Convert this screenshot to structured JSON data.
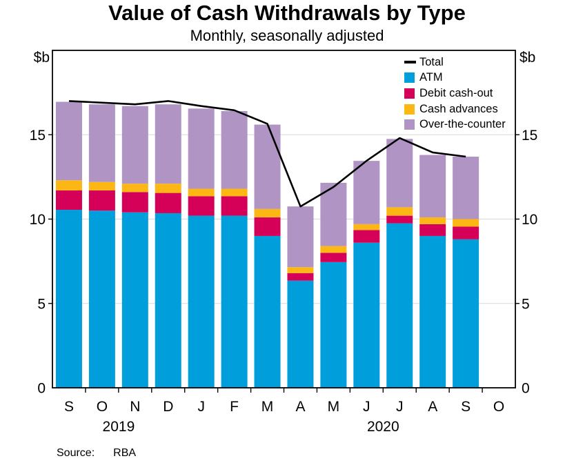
{
  "title": "Value of Cash Withdrawals by Type",
  "subtitle": "Monthly, seasonally adjusted",
  "unit_left": "$b",
  "unit_right": "$b",
  "source": {
    "label": "Source:",
    "value": "RBA"
  },
  "chart_data": {
    "type": "bar",
    "subtype": "stacked-bars-with-total-line",
    "categories": [
      "S",
      "O",
      "N",
      "D",
      "J",
      "F",
      "M",
      "A",
      "M",
      "J",
      "J",
      "A",
      "S",
      "O"
    ],
    "year_labels": [
      {
        "text": "2019",
        "boundary_slot": 2
      },
      {
        "text": "2020",
        "boundary_slot": 10
      }
    ],
    "series": [
      {
        "name": "ATM",
        "color": "#009FDC",
        "values": [
          10.55,
          10.5,
          10.4,
          10.35,
          10.2,
          10.2,
          9.0,
          6.35,
          7.45,
          8.6,
          9.75,
          9.0,
          8.8,
          null
        ]
      },
      {
        "name": "Debit cash-out",
        "color": "#D50058",
        "values": [
          1.15,
          1.2,
          1.2,
          1.2,
          1.15,
          1.15,
          1.1,
          0.45,
          0.55,
          0.75,
          0.45,
          0.7,
          0.75,
          null
        ]
      },
      {
        "name": "Cash advances",
        "color": "#FDB714",
        "values": [
          0.6,
          0.5,
          0.5,
          0.55,
          0.45,
          0.45,
          0.5,
          0.35,
          0.4,
          0.35,
          0.5,
          0.4,
          0.45,
          null
        ]
      },
      {
        "name": "Over-the-counter",
        "color": "#B094C4",
        "values": [
          4.65,
          4.6,
          4.6,
          4.7,
          4.75,
          4.6,
          5.0,
          3.6,
          3.75,
          3.75,
          4.05,
          3.7,
          3.7,
          null
        ]
      }
    ],
    "line_series": {
      "name": "Total",
      "color": "#000000",
      "values": [
        17.0,
        16.9,
        16.8,
        17.0,
        16.7,
        16.45,
        15.65,
        10.75,
        11.9,
        13.45,
        14.8,
        13.95,
        13.7,
        null
      ]
    },
    "ylabel_unit": "$b",
    "ylim": [
      0,
      20
    ],
    "yticks": [
      0,
      5,
      10,
      15
    ],
    "grid": true,
    "grid_color": "#D8D8D8",
    "axis_color": "#000000",
    "legend_position": "top-right-inside"
  }
}
